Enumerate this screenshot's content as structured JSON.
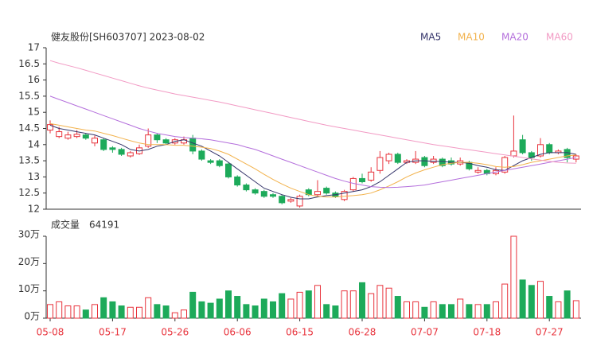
{
  "chart_data": {
    "type": "candlestick",
    "title": "健友股份[SH603707] 2023-08-02",
    "categories": [
      "05-08",
      null,
      null,
      null,
      null,
      null,
      null,
      "05-17",
      null,
      null,
      null,
      null,
      null,
      null,
      "05-26",
      null,
      null,
      null,
      null,
      null,
      null,
      "06-06",
      null,
      null,
      null,
      null,
      null,
      null,
      "06-15",
      null,
      null,
      null,
      null,
      null,
      null,
      "06-28",
      null,
      null,
      null,
      null,
      null,
      null,
      "07-07",
      null,
      null,
      null,
      null,
      null,
      null,
      "07-18",
      null,
      null,
      null,
      null,
      null,
      null,
      "07-27",
      null,
      null,
      null
    ],
    "up_color": "#e8333c",
    "down_color": "#1daa5a",
    "open": [
      14.45,
      14.25,
      14.2,
      14.25,
      14.3,
      14.05,
      14.15,
      13.9,
      13.85,
      13.65,
      13.72,
      13.95,
      14.3,
      14.15,
      14.05,
      14.05,
      14.2,
      13.8,
      13.5,
      13.5,
      13.4,
      13.0,
      12.75,
      12.6,
      12.55,
      12.45,
      12.4,
      12.25,
      12.1,
      12.6,
      12.45,
      12.65,
      12.5,
      12.3,
      12.6,
      12.95,
      12.9,
      13.2,
      13.5,
      13.7,
      13.45,
      13.45,
      13.6,
      13.45,
      13.55,
      13.5,
      13.4,
      13.45,
      13.15,
      13.2,
      13.1,
      13.15,
      13.65,
      14.15,
      13.75,
      13.65,
      14.0,
      13.75,
      13.85,
      13.55
    ],
    "high": [
      14.75,
      14.55,
      14.4,
      14.45,
      14.35,
      14.28,
      14.2,
      13.95,
      13.9,
      13.8,
      14.0,
      14.5,
      14.35,
      14.2,
      14.2,
      14.25,
      14.3,
      13.85,
      13.55,
      13.55,
      13.45,
      13.05,
      12.8,
      12.65,
      12.6,
      12.5,
      12.45,
      12.35,
      12.45,
      12.65,
      12.9,
      12.7,
      12.55,
      12.6,
      13.0,
      13.1,
      13.3,
      13.8,
      13.75,
      13.75,
      13.55,
      13.8,
      13.65,
      13.65,
      13.6,
      13.6,
      13.6,
      13.5,
      13.3,
      13.25,
      13.3,
      13.65,
      14.9,
      14.3,
      13.8,
      14.2,
      14.05,
      13.85,
      13.9,
      13.7
    ],
    "low": [
      14.35,
      14.2,
      14.15,
      14.2,
      14.15,
      13.95,
      13.8,
      13.75,
      13.65,
      13.6,
      13.68,
      13.9,
      14.05,
      14.0,
      14.0,
      14.0,
      13.7,
      13.5,
      13.4,
      13.3,
      12.95,
      12.7,
      12.55,
      12.45,
      12.35,
      12.35,
      12.15,
      12.2,
      12.05,
      12.4,
      12.4,
      12.45,
      12.35,
      12.25,
      12.55,
      12.8,
      12.85,
      13.1,
      13.4,
      13.4,
      13.4,
      13.4,
      13.3,
      13.4,
      13.3,
      13.35,
      13.35,
      13.2,
      13.1,
      13.05,
      13.05,
      13.1,
      13.6,
      13.7,
      13.5,
      13.6,
      13.7,
      13.7,
      13.45,
      13.45
    ],
    "close": [
      14.62,
      14.4,
      14.3,
      14.32,
      14.2,
      14.2,
      13.85,
      13.85,
      13.7,
      13.75,
      13.9,
      14.3,
      14.15,
      14.05,
      14.15,
      14.15,
      13.8,
      13.55,
      13.45,
      13.35,
      13.0,
      12.75,
      12.6,
      12.5,
      12.4,
      12.4,
      12.2,
      12.3,
      12.4,
      12.45,
      12.55,
      12.5,
      12.4,
      12.55,
      12.95,
      12.85,
      13.15,
      13.6,
      13.7,
      13.45,
      13.5,
      13.55,
      13.35,
      13.55,
      13.35,
      13.4,
      13.5,
      13.25,
      13.2,
      13.1,
      13.2,
      13.6,
      13.8,
      13.75,
      13.6,
      14.0,
      13.75,
      13.8,
      13.6,
      13.65
    ],
    "ylim": [
      12,
      17
    ],
    "yticks": [
      12,
      12.5,
      13,
      13.5,
      14,
      14.5,
      15,
      15.5,
      16,
      16.5,
      17
    ],
    "ma": [
      {
        "name": "MA5",
        "color": "#34346a",
        "values": [
          14.6,
          14.5,
          14.45,
          14.4,
          14.35,
          14.3,
          14.2,
          14.1,
          14.0,
          13.85,
          13.8,
          13.85,
          13.95,
          14.0,
          14.1,
          14.15,
          14.05,
          13.95,
          13.8,
          13.65,
          13.45,
          13.25,
          13.05,
          12.85,
          12.65,
          12.55,
          12.45,
          12.37,
          12.32,
          12.32,
          12.38,
          12.42,
          12.45,
          12.5,
          12.55,
          12.6,
          12.7,
          12.85,
          13.05,
          13.25,
          13.45,
          13.5,
          13.5,
          13.48,
          13.48,
          13.45,
          13.45,
          13.42,
          13.35,
          13.3,
          13.22,
          13.2,
          13.35,
          13.5,
          13.6,
          13.7,
          13.75,
          13.75,
          13.75,
          13.7
        ]
      },
      {
        "name": "MA10",
        "color": "#f2b24c",
        "values": [
          14.65,
          14.6,
          14.55,
          14.5,
          14.45,
          14.42,
          14.35,
          14.28,
          14.2,
          14.12,
          14.05,
          14.0,
          14.0,
          14.0,
          13.98,
          13.98,
          13.95,
          13.92,
          13.88,
          13.8,
          13.7,
          13.55,
          13.4,
          13.25,
          13.08,
          12.92,
          12.78,
          12.65,
          12.55,
          12.45,
          12.4,
          12.38,
          12.38,
          12.4,
          12.42,
          12.45,
          12.5,
          12.6,
          12.72,
          12.85,
          13.0,
          13.12,
          13.22,
          13.3,
          13.38,
          13.42,
          13.45,
          13.45,
          13.42,
          13.38,
          13.32,
          13.3,
          13.32,
          13.38,
          13.45,
          13.5,
          13.55,
          13.6,
          13.65,
          13.68
        ]
      },
      {
        "name": "MA20",
        "color": "#b46fdc",
        "values": [
          15.5,
          15.4,
          15.3,
          15.2,
          15.1,
          15.0,
          14.9,
          14.8,
          14.7,
          14.6,
          14.5,
          14.42,
          14.35,
          14.3,
          14.25,
          14.22,
          14.2,
          14.18,
          14.15,
          14.1,
          14.05,
          14.0,
          13.92,
          13.85,
          13.75,
          13.65,
          13.55,
          13.45,
          13.35,
          13.25,
          13.15,
          13.05,
          12.95,
          12.87,
          12.8,
          12.75,
          12.7,
          12.68,
          12.67,
          12.68,
          12.7,
          12.72,
          12.75,
          12.8,
          12.85,
          12.9,
          12.95,
          13.0,
          13.05,
          13.1,
          13.15,
          13.2,
          13.25,
          13.3,
          13.35,
          13.4,
          13.45,
          13.5,
          13.55,
          13.6
        ]
      },
      {
        "name": "MA60",
        "color": "#f29ac4",
        "values": [
          16.6,
          16.52,
          16.45,
          16.38,
          16.3,
          16.22,
          16.14,
          16.06,
          15.98,
          15.9,
          15.82,
          15.75,
          15.69,
          15.63,
          15.57,
          15.52,
          15.47,
          15.42,
          15.37,
          15.32,
          15.26,
          15.2,
          15.14,
          15.08,
          15.02,
          14.96,
          14.9,
          14.84,
          14.78,
          14.72,
          14.66,
          14.6,
          14.55,
          14.5,
          14.45,
          14.4,
          14.35,
          14.3,
          14.25,
          14.2,
          14.15,
          14.1,
          14.05,
          14.0,
          13.96,
          13.92,
          13.88,
          13.84,
          13.8,
          13.76,
          13.72,
          13.68,
          13.64,
          13.6,
          13.56,
          13.52,
          13.48,
          13.45,
          13.43,
          13.42
        ]
      }
    ],
    "volume": {
      "title": "成交量",
      "values": [
        50000,
        60000,
        45000,
        45000,
        30000,
        50000,
        75000,
        60000,
        45000,
        40000,
        40000,
        75000,
        50000,
        45000,
        20000,
        30000,
        95000,
        60000,
        55000,
        70000,
        100000,
        80000,
        50000,
        45000,
        70000,
        60000,
        90000,
        70000,
        95000,
        100000,
        120000,
        50000,
        45000,
        100000,
        100000,
        130000,
        90000,
        120000,
        110000,
        80000,
        60000,
        60000,
        40000,
        60000,
        50000,
        50000,
        70000,
        50000,
        50000,
        50000,
        60000,
        125000,
        300000,
        140000,
        120000,
        135000,
        80000,
        60000,
        100000,
        64191
      ],
      "ylim": [
        0,
        300000
      ],
      "yticks": [
        {
          "value": 0,
          "label": "0万"
        },
        {
          "value": 100000,
          "label": "10万"
        },
        {
          "value": 200000,
          "label": "20万"
        },
        {
          "value": 300000,
          "label": "30万"
        }
      ]
    }
  }
}
